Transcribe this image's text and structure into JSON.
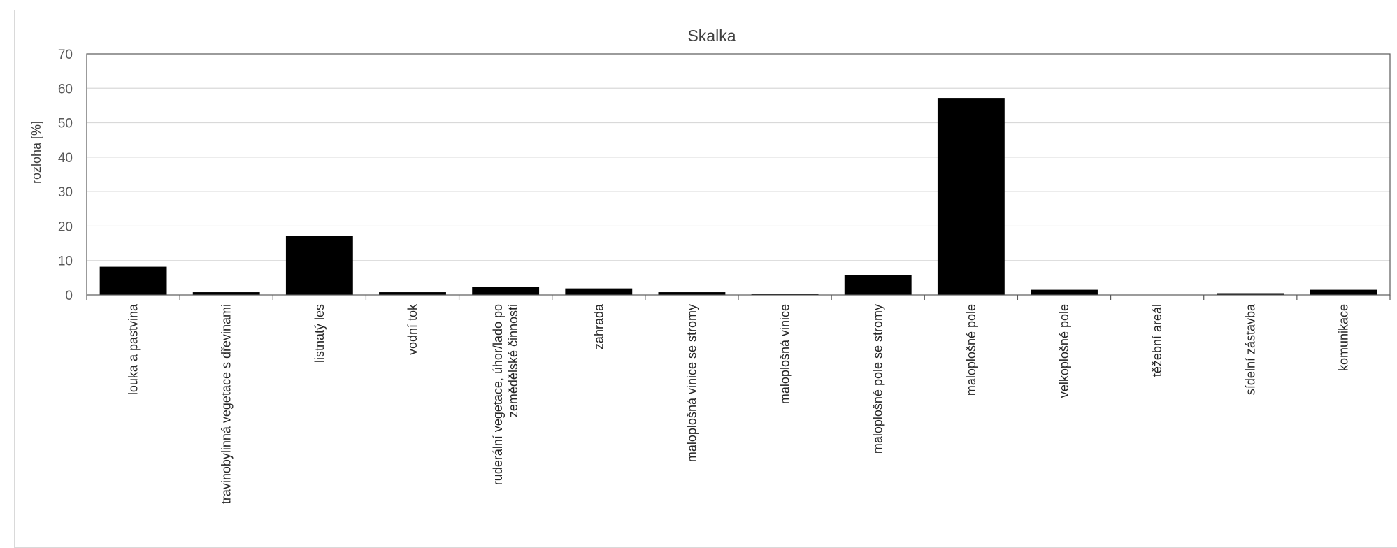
{
  "chart_data": {
    "type": "bar",
    "title": "Skalka",
    "xlabel": "",
    "ylabel": "rozloha [%]",
    "ylim": [
      0,
      70
    ],
    "yticks": [
      0,
      10,
      20,
      30,
      40,
      50,
      60,
      70
    ],
    "grid": true,
    "legend": "none",
    "bar_color": "#000000",
    "categories": [
      "louka a pastvina",
      "travinobylinná vegetace s dřevinami",
      "listnatý les",
      "vodní tok",
      "ruderální vegetace, úhor/lado po zemědělské činnosti",
      "zahrada",
      "maloplošná vinice se stromy",
      "maloplošná vinice",
      "maloplošné pole se stromy",
      "maloplošné pole",
      "velkoplošné pole",
      "těžební areál",
      "sídelní zástavba",
      "komunikace"
    ],
    "values": [
      8.2,
      0.8,
      17.2,
      0.8,
      2.3,
      1.9,
      0.8,
      0.4,
      5.7,
      57.2,
      1.5,
      0.0,
      0.5,
      1.5
    ]
  }
}
